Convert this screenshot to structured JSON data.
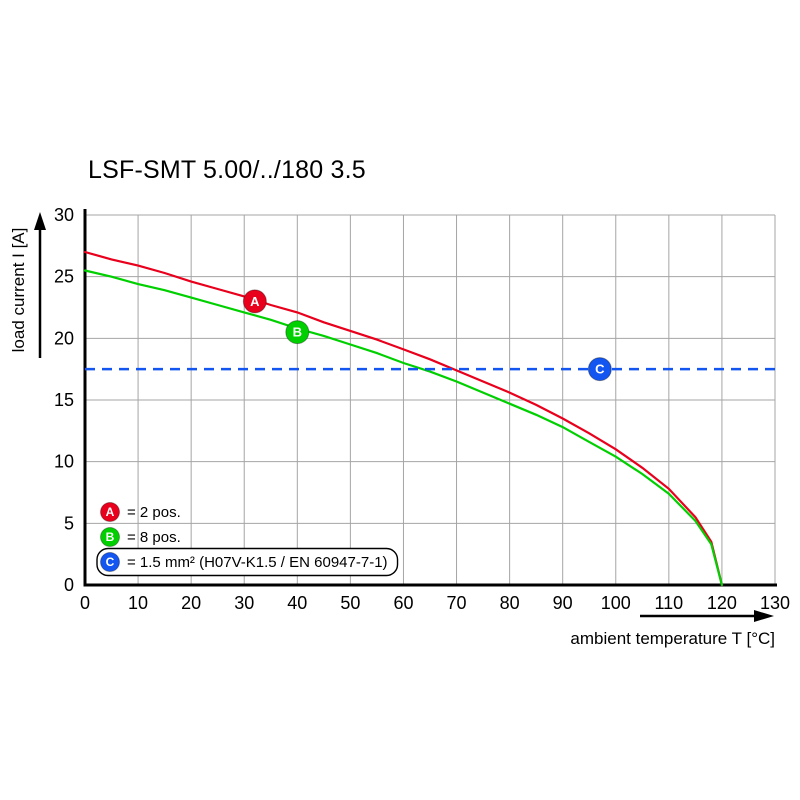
{
  "chart_data": {
    "type": "line",
    "title": "LSF-SMT 5.00/../180 3.5",
    "xlabel": "ambient temperature T [°C]",
    "ylabel": "load current I [A]",
    "x_range": [
      0,
      130
    ],
    "y_range": [
      0,
      30
    ],
    "x_ticks": [
      0,
      10,
      20,
      30,
      40,
      50,
      60,
      70,
      80,
      90,
      100,
      110,
      120,
      130
    ],
    "y_ticks": [
      0,
      5,
      10,
      15,
      20,
      25,
      30
    ],
    "grid": true,
    "grid_color": "#a5a5a5",
    "axis_color": "#000000",
    "legend_position": "lower-left",
    "series": [
      {
        "name": "A",
        "label": "2 pos.",
        "color": "#e8001c",
        "x": [
          0,
          5,
          10,
          15,
          20,
          25,
          30,
          35,
          40,
          45,
          50,
          55,
          60,
          65,
          70,
          75,
          80,
          85,
          90,
          95,
          100,
          105,
          110,
          115,
          118,
          120
        ],
        "y": [
          27.0,
          26.4,
          25.9,
          25.3,
          24.6,
          24.0,
          23.4,
          22.7,
          22.1,
          21.3,
          20.6,
          19.9,
          19.1,
          18.3,
          17.4,
          16.5,
          15.6,
          14.6,
          13.5,
          12.3,
          11.0,
          9.5,
          7.8,
          5.5,
          3.5,
          0
        ],
        "marker": {
          "x": 32,
          "y": 23
        }
      },
      {
        "name": "B",
        "label": "8 pos.",
        "color": "#00cf00",
        "x": [
          0,
          5,
          10,
          15,
          20,
          25,
          30,
          35,
          40,
          45,
          50,
          55,
          60,
          65,
          70,
          75,
          80,
          85,
          90,
          95,
          100,
          105,
          110,
          115,
          118,
          120
        ],
        "y": [
          25.5,
          25.0,
          24.4,
          23.9,
          23.3,
          22.7,
          22.1,
          21.5,
          20.8,
          20.2,
          19.5,
          18.8,
          18.0,
          17.3,
          16.5,
          15.6,
          14.7,
          13.8,
          12.8,
          11.6,
          10.4,
          9.0,
          7.4,
          5.2,
          3.3,
          0
        ],
        "marker": {
          "x": 40,
          "y": 20.5
        }
      },
      {
        "name": "C",
        "label": "1.5 mm² (H07V-K1.5 / EN 60947-7-1)",
        "color": "#1255f0",
        "hline": 17.5,
        "dashed": true,
        "marker": {
          "x": 97,
          "y": 17.5
        }
      }
    ],
    "legend": [
      {
        "id": "A",
        "text": "= 2 pos.",
        "boxed": false
      },
      {
        "id": "B",
        "text": "= 8 pos.",
        "boxed": false
      },
      {
        "id": "C",
        "text": "= 1.5 mm² (H07V-K1.5 / EN 60947-7-1)",
        "boxed": true
      }
    ]
  }
}
